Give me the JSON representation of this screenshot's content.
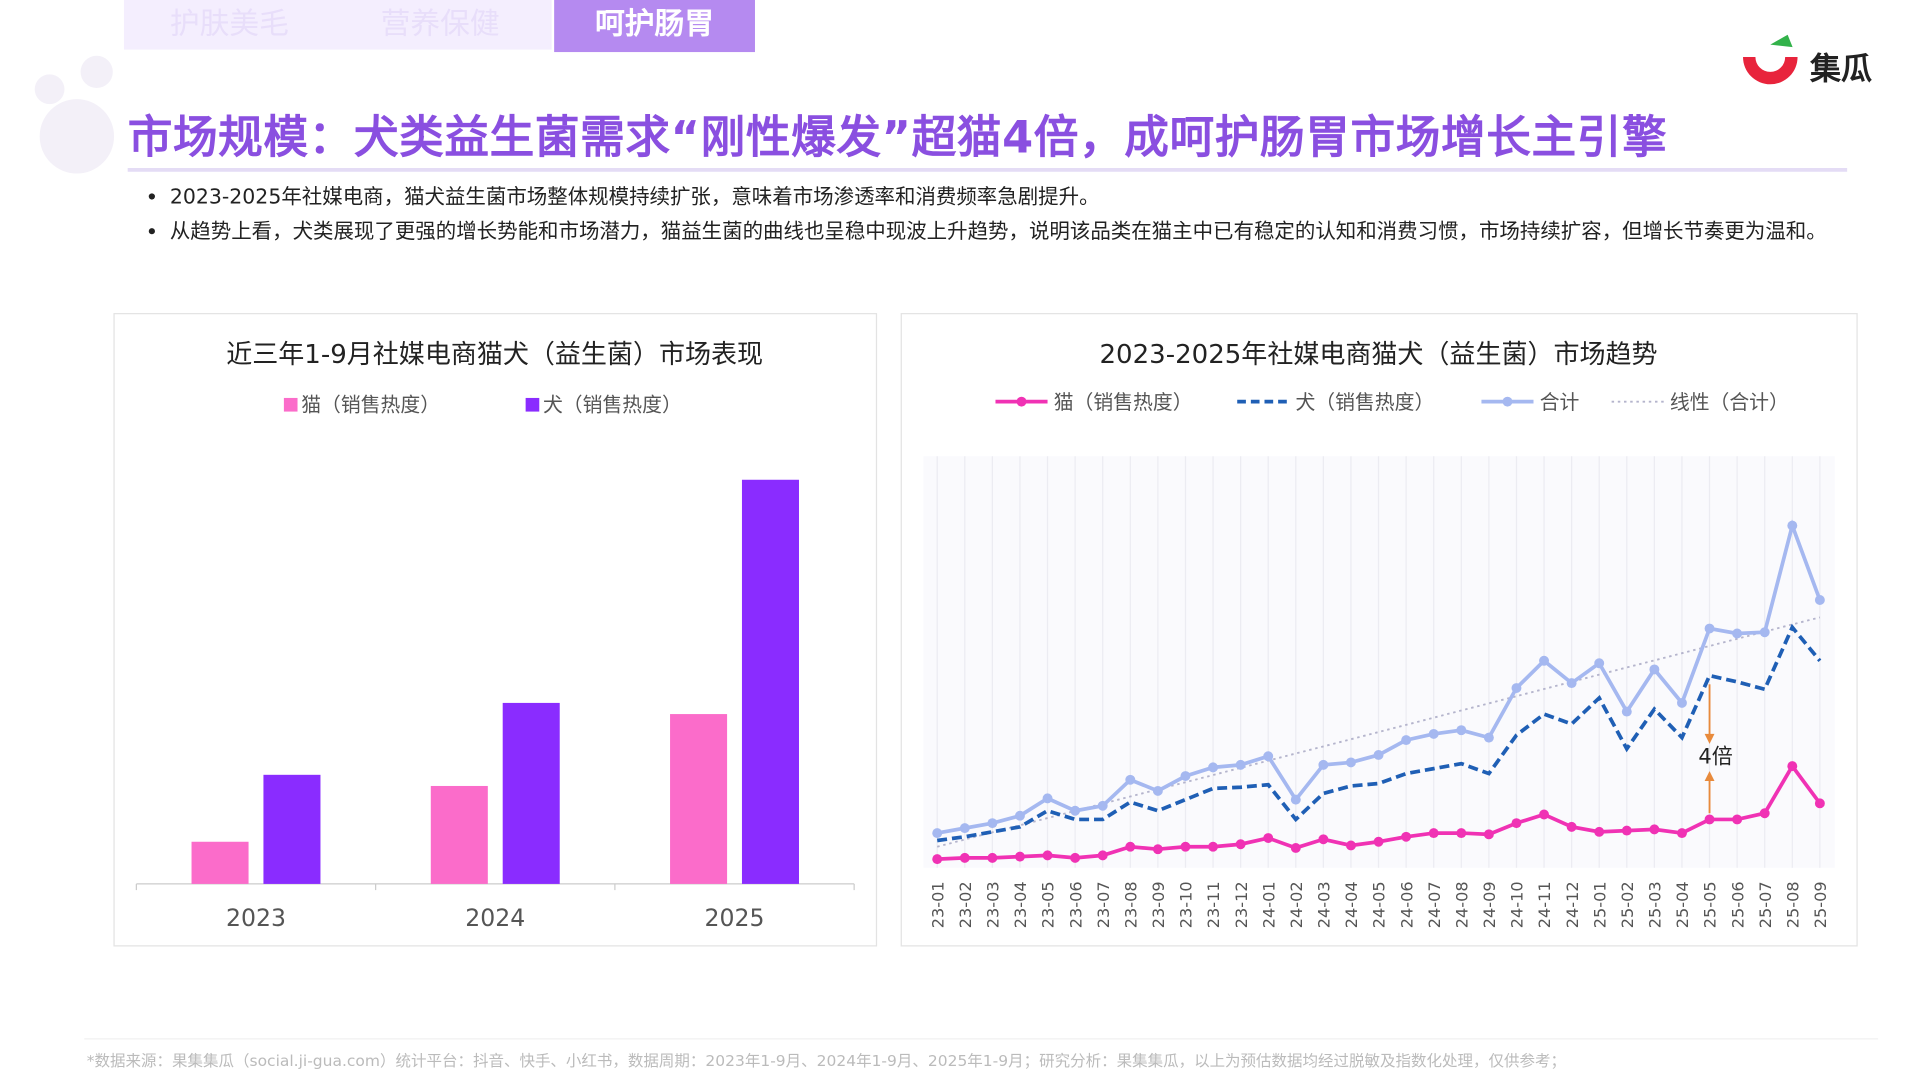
{
  "tabs": [
    "护肤美毛",
    "营养保健",
    "呵护肠胃"
  ],
  "logo": "集瓜",
  "title": "市场规模：犬类益生菌需求“刚性爆发”超猫4倍，成呵护肠胃市场增长主引擎",
  "bullets": [
    "2023-2025年社媒电商，猫犬益生菌市场整体规模持续扩张，意味着市场渗透率和消费频率急剧提升。",
    "从趋势上看，犬类展现了更强的增长势能和市场潜力，猫益生菌的曲线也呈稳中现波上升趋势，说明该品类在猫主中已有稳定的认知和消费习惯，市场持续扩容，但增长节奏更为温和。"
  ],
  "footnote": "*数据来源：果集集瓜（social.ji-gua.com）统计平台：抖音、快手、小红书，数据周期：2023年1-9月、2024年1-9月、2025年1-9月；研究分析：果集集瓜，以上为预估数据均经过脱敏及指数化处理，仅供参考；",
  "chart_data": [
    {
      "type": "bar",
      "title": "近三年1-9月社媒电商猫犬（益生菌）市场表现",
      "categories": [
        "2023",
        "2024",
        "2025"
      ],
      "series": [
        {
          "name": "猫（销售热度）",
          "color": "#fb6cca",
          "values": [
            34,
            79,
            137
          ]
        },
        {
          "name": "犬（销售热度）",
          "color": "#8a2cff",
          "values": [
            88,
            146,
            326
          ]
        }
      ],
      "ylim": [
        0,
        340
      ]
    },
    {
      "type": "line",
      "title": "2023-2025年社媒电商猫犬（益生菌）市场趋势",
      "categories": [
        "23-01",
        "23-02",
        "23-03",
        "23-04",
        "23-05",
        "23-06",
        "23-07",
        "23-08",
        "23-09",
        "23-10",
        "23-11",
        "23-12",
        "24-01",
        "24-02",
        "24-03",
        "24-04",
        "24-05",
        "24-06",
        "24-07",
        "24-08",
        "24-09",
        "24-10",
        "24-11",
        "24-12",
        "25-01",
        "25-02",
        "25-03",
        "25-04",
        "25-05",
        "25-06",
        "25-07",
        "25-08",
        "25-09"
      ],
      "series": [
        {
          "name": "猫（销售热度）",
          "color": "#f032b4",
          "style": "solid-marker",
          "values": [
            7,
            8,
            8,
            9,
            10,
            8,
            10,
            17,
            15,
            17,
            17,
            19,
            24,
            16,
            23,
            18,
            21,
            25,
            28,
            28,
            27,
            36,
            43,
            33,
            29,
            30,
            31,
            28,
            39,
            39,
            44,
            82,
            52
          ]
        },
        {
          "name": "犬（销售热度）",
          "color": "#1f5fb5",
          "style": "dashed",
          "values": [
            22,
            25,
            29,
            33,
            46,
            39,
            39,
            53,
            46,
            55,
            64,
            65,
            67,
            39,
            60,
            66,
            68,
            76,
            80,
            84,
            76,
            107,
            124,
            116,
            137,
            96,
            128,
            105,
            155,
            150,
            144,
            194,
            167
          ]
        },
        {
          "name": "合计",
          "color": "#a5b8f0",
          "style": "solid-marker",
          "values": [
            28,
            32,
            36,
            42,
            56,
            46,
            50,
            71,
            62,
            74,
            81,
            83,
            90,
            55,
            83,
            85,
            91,
            103,
            108,
            111,
            105,
            145,
            167,
            149,
            165,
            126,
            160,
            133,
            193,
            189,
            190,
            276,
            216
          ]
        },
        {
          "name": "线性（合计）",
          "color": "#b4b4cc",
          "style": "dotted",
          "values": [
            17,
            22.8,
            28.6,
            34.3,
            40.1,
            45.9,
            51.7,
            57.5,
            63.3,
            69.0,
            74.8,
            80.6,
            86.4,
            92.2,
            97.9,
            103.7,
            109.5,
            115.3,
            121.1,
            126.9,
            132.6,
            138.4,
            144.2,
            150.0,
            155.8,
            161.6,
            167.3,
            173.1,
            178.9,
            184.7,
            190.5,
            196.3,
            202.0
          ]
        }
      ],
      "annotation": "4倍",
      "ylim": [
        0,
        332
      ]
    }
  ]
}
